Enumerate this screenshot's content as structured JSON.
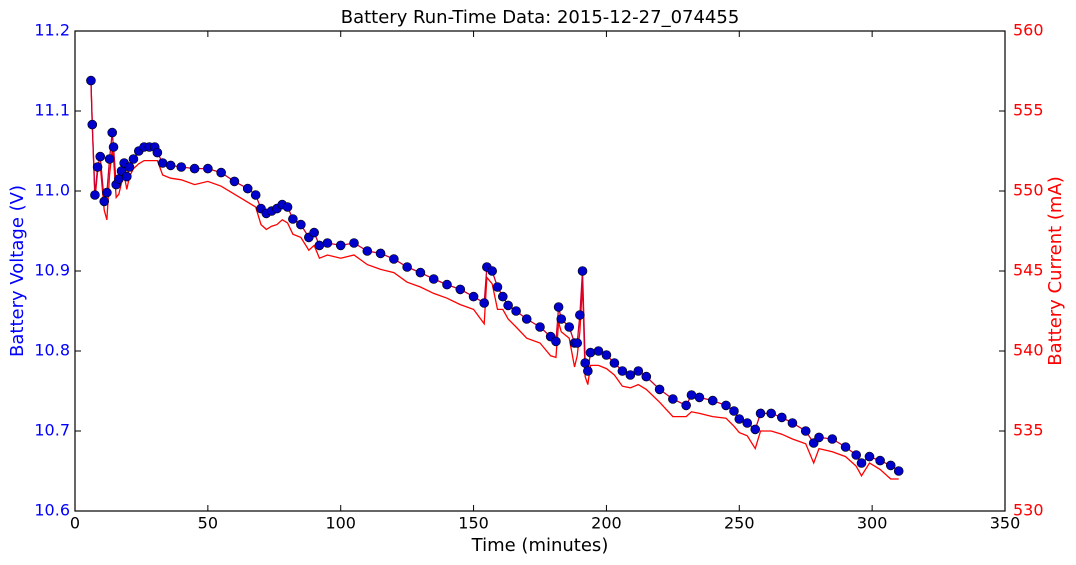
{
  "chart_data": {
    "type": "line",
    "title": "Battery Run-Time Data: 2015-12-27_074455",
    "xlabel": "Time (minutes)",
    "ylabel": "Battery Voltage (V)",
    "y2label": "Battery Current (mA)",
    "xlim": [
      0,
      350
    ],
    "xticks": [
      0,
      50,
      100,
      150,
      200,
      250,
      300,
      350
    ],
    "ylim": [
      10.6,
      11.2
    ],
    "yticks": [
      10.6,
      10.7,
      10.8,
      10.9,
      {
        "value": 11,
        "label": "11.0"
      },
      11.1,
      11.2
    ],
    "y2lim": [
      530,
      560
    ],
    "y2ticks": [
      530,
      535,
      540,
      545,
      550,
      555,
      560
    ],
    "ylabel_color": "#0000ff",
    "y2label_color": "#ff0000",
    "x": [
      6,
      6.5,
      7.5,
      8.5,
      9.5,
      11,
      12,
      13,
      14,
      14.5,
      15.5,
      16.5,
      17.5,
      18.5,
      19.5,
      20.5,
      22,
      24,
      26,
      28,
      30,
      31,
      33,
      36,
      40,
      45,
      50,
      55,
      60,
      65,
      68,
      70,
      72,
      74,
      76,
      78,
      80,
      82,
      85,
      88,
      90,
      92,
      95,
      100,
      105,
      110,
      115,
      120,
      125,
      130,
      135,
      140,
      145,
      150,
      154,
      155,
      157,
      159,
      161,
      163,
      166,
      170,
      175,
      179,
      181,
      182,
      183,
      186,
      188,
      189,
      190,
      191,
      192,
      193,
      194,
      197,
      200,
      203,
      206,
      209,
      212,
      215,
      220,
      225,
      230,
      232,
      235,
      240,
      245,
      248,
      250,
      253,
      256,
      258,
      262,
      266,
      270,
      275,
      278,
      280,
      285,
      290,
      294,
      296,
      299,
      303,
      307,
      310
    ],
    "series": [
      {
        "name": "Battery Voltage (V)",
        "color": "#0000cc",
        "line_color": "#cc0033",
        "marker": true,
        "values": [
          11.138,
          11.083,
          10.995,
          11.03,
          11.043,
          10.987,
          10.998,
          11.04,
          11.073,
          11.055,
          11.008,
          11.015,
          11.025,
          11.035,
          11.018,
          11.03,
          11.04,
          11.05,
          11.055,
          11.055,
          11.055,
          11.048,
          11.035,
          11.032,
          11.03,
          11.028,
          11.028,
          11.023,
          11.012,
          11.003,
          10.995,
          10.978,
          10.972,
          10.975,
          10.978,
          10.983,
          10.98,
          10.965,
          10.958,
          10.942,
          10.948,
          10.932,
          10.935,
          10.932,
          10.935,
          10.925,
          10.922,
          10.915,
          10.905,
          10.898,
          10.89,
          10.883,
          10.877,
          10.868,
          10.86,
          10.905,
          10.9,
          10.88,
          10.868,
          10.857,
          10.85,
          10.84,
          10.83,
          10.818,
          10.812,
          10.855,
          10.84,
          10.83,
          10.81,
          10.81,
          10.845,
          10.9,
          10.785,
          10.775,
          10.798,
          10.8,
          10.795,
          10.785,
          10.775,
          10.77,
          10.775,
          10.768,
          10.752,
          10.74,
          10.732,
          10.745,
          10.742,
          10.738,
          10.732,
          10.725,
          10.715,
          10.71,
          10.702,
          10.722,
          10.722,
          10.717,
          10.71,
          10.7,
          10.685,
          10.692,
          10.69,
          10.68,
          10.67,
          10.66,
          10.668,
          10.663,
          10.657,
          10.65
        ]
      },
      {
        "name": "Battery Current (mA)",
        "color": "#ff0000",
        "axis": "y2",
        "marker": false,
        "values": [
          556.9,
          554.2,
          549.5,
          551.2,
          551.6,
          548.8,
          548.2,
          551,
          552.6,
          552,
          549.6,
          549.8,
          550.5,
          551,
          550.1,
          550.9,
          551.4,
          551.7,
          551.9,
          551.9,
          551.9,
          551.9,
          551,
          550.8,
          550.7,
          550.4,
          550.6,
          550.3,
          549.8,
          549.3,
          549,
          547.9,
          547.6,
          547.8,
          547.9,
          548.2,
          548,
          547.3,
          547.1,
          546.3,
          546.6,
          545.8,
          546,
          545.8,
          546,
          545.4,
          545.1,
          544.9,
          544.3,
          544,
          543.6,
          543.3,
          542.9,
          542.6,
          541.7,
          544.6,
          544.2,
          542.6,
          542.6,
          542,
          541.5,
          540.8,
          540.5,
          539.7,
          539.6,
          541.8,
          541.2,
          540.8,
          539,
          539.7,
          541.2,
          544.2,
          538.4,
          537.9,
          539.1,
          539.1,
          538.9,
          538.5,
          537.8,
          537.7,
          537.9,
          537.6,
          536.8,
          535.9,
          535.9,
          536.2,
          536.1,
          535.9,
          535.8,
          535.3,
          534.9,
          534.7,
          533.9,
          535,
          535,
          534.8,
          534.5,
          534.2,
          533,
          533.9,
          533.7,
          533.4,
          532.8,
          532.2,
          533,
          532.6,
          532,
          532
        ]
      }
    ]
  }
}
